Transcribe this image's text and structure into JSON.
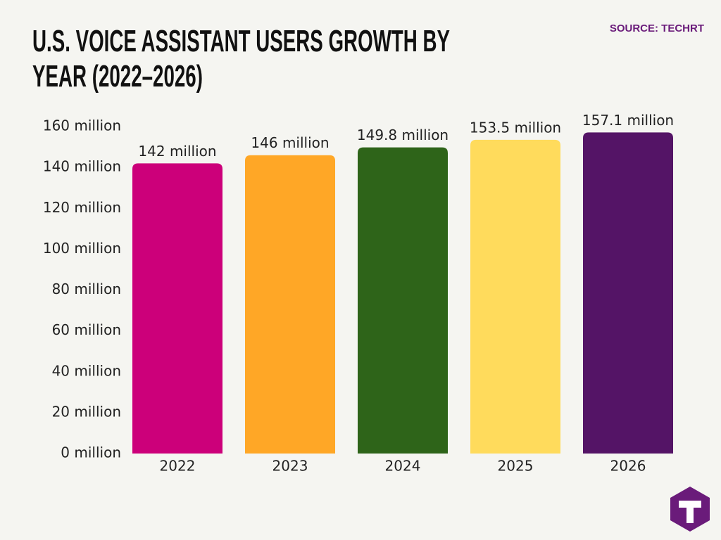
{
  "chart_data": {
    "type": "bar",
    "title": "U.S. VOICE ASSISTANT USERS GROWTH BY YEAR (2022–2026)",
    "source": "SOURCE: TECHRT",
    "categories": [
      "2022",
      "2023",
      "2024",
      "2025",
      "2026"
    ],
    "values": [
      142,
      146,
      149.8,
      153.5,
      157.1
    ],
    "value_labels": [
      "142 million",
      "146 million",
      "149.8 million",
      "153.5 million",
      "157.1 million"
    ],
    "colors": [
      "#cc007a",
      "#ffa726",
      "#2e6419",
      "#ffdb5c",
      "#541466"
    ],
    "ylim": [
      0,
      160
    ],
    "yticks": [
      {
        "value": 0,
        "label": "0 million"
      },
      {
        "value": 20,
        "label": "20 million"
      },
      {
        "value": 40,
        "label": "40 million"
      },
      {
        "value": 60,
        "label": "60 million"
      },
      {
        "value": 80,
        "label": "80 million"
      },
      {
        "value": 100,
        "label": "100 million"
      },
      {
        "value": 120,
        "label": "120 million"
      },
      {
        "value": 140,
        "label": "140 million"
      },
      {
        "value": 160,
        "label": "160 million"
      }
    ],
    "grid": false
  }
}
